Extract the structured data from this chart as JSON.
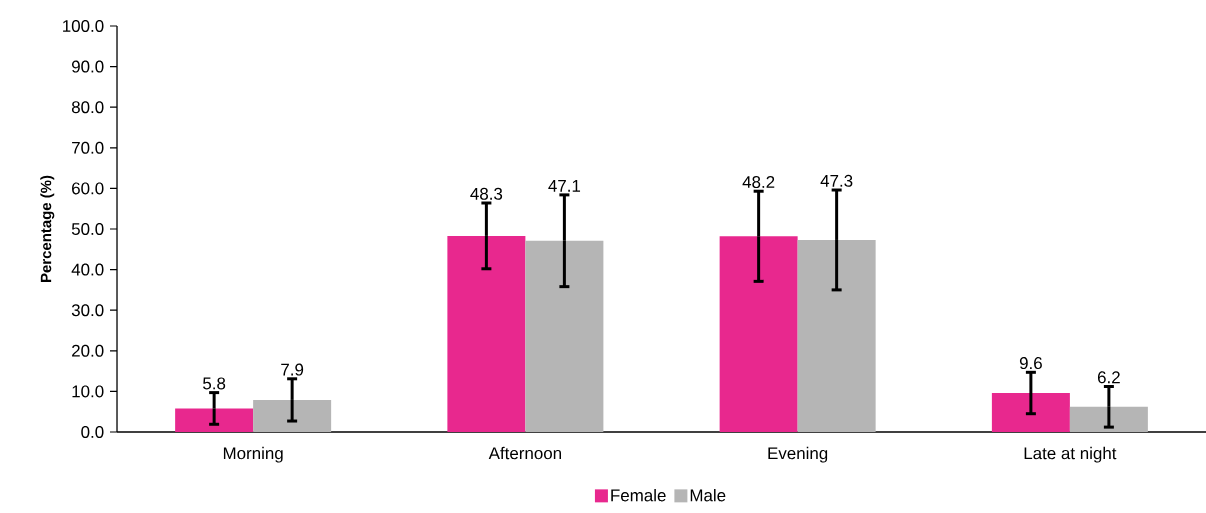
{
  "chart_data": {
    "type": "bar",
    "ylabel": "Percentage (%)",
    "categories": [
      "Morning",
      "Afternoon",
      "Evening",
      "Late at night"
    ],
    "series": [
      {
        "name": "Female",
        "color": "#e8288e",
        "values": [
          5.8,
          48.3,
          48.2,
          9.6
        ],
        "errors": [
          3.9,
          8.1,
          11.1,
          5.1
        ]
      },
      {
        "name": "Male",
        "color": "#b5b5b5",
        "values": [
          7.9,
          47.1,
          47.3,
          6.2
        ],
        "errors": [
          5.2,
          11.3,
          12.3,
          5.0
        ]
      }
    ],
    "ylim": [
      0,
      100
    ],
    "yticks": [
      {
        "value": 0,
        "label": "0.0"
      },
      {
        "value": 10,
        "label": "10.0"
      },
      {
        "value": 20,
        "label": "20.0"
      },
      {
        "value": 30,
        "label": "30.0"
      },
      {
        "value": 40,
        "label": "40.0"
      },
      {
        "value": 50,
        "label": "50.0"
      },
      {
        "value": 60,
        "label": "60.0"
      },
      {
        "value": 70,
        "label": "70.0"
      },
      {
        "value": 80,
        "label": "80.0"
      },
      {
        "value": 90,
        "label": "90.0"
      },
      {
        "value": 100,
        "label": "100.0"
      }
    ],
    "data_labels": true,
    "legend": "bottom",
    "grid": false
  }
}
